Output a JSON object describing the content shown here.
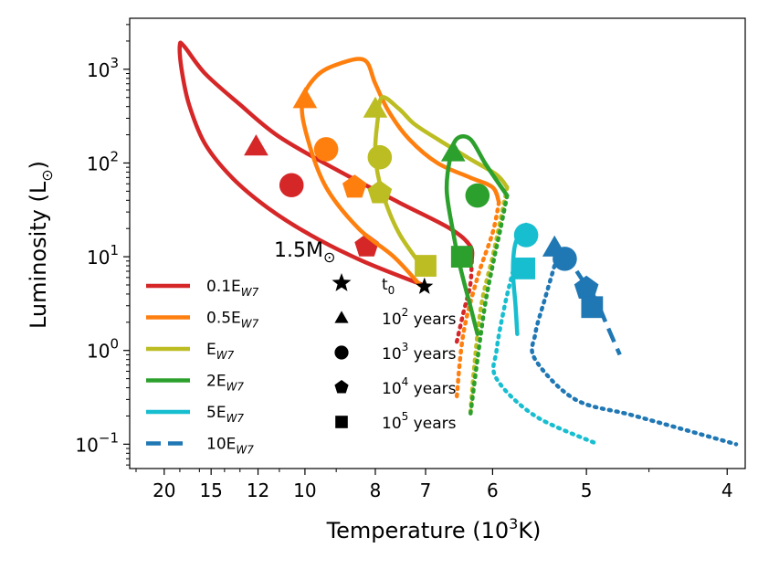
{
  "chart_data": {
    "type": "line",
    "title": "",
    "xlabel": {
      "text": "Temperature (10",
      "sup": "3",
      "tail": "K)"
    },
    "ylabel": {
      "text": "Luminosity (L",
      "sub": "⊙",
      "tail": ")"
    },
    "x_scale": "reciprocal",
    "x_unit": "10^3 K",
    "x_reversed": true,
    "xlim": [
      26.5,
      3.9
    ],
    "y_scale": "log",
    "ylim": [
      0.055,
      3500
    ],
    "grid": false,
    "x_ticks": [
      {
        "value": 20,
        "label": "20"
      },
      {
        "value": 15,
        "label": "15"
      },
      {
        "value": 12,
        "label": "12"
      },
      {
        "value": 10,
        "label": "10"
      },
      {
        "value": 8,
        "label": "8"
      },
      {
        "value": 7,
        "label": "7"
      },
      {
        "value": 6,
        "label": "6"
      },
      {
        "value": 5,
        "label": "5"
      },
      {
        "value": 4,
        "label": "4"
      }
    ],
    "y_ticks": [
      {
        "value": 0.1,
        "base": "10",
        "exp": "−1"
      },
      {
        "value": 1,
        "base": "10",
        "exp": "0"
      },
      {
        "value": 10,
        "base": "10",
        "exp": "1"
      },
      {
        "value": 100,
        "base": "10",
        "exp": "2"
      },
      {
        "value": 1000,
        "base": "10",
        "exp": "3"
      }
    ],
    "mass_label": {
      "text": "1.5M",
      "sub": "⊙"
    },
    "legend_position": "lower-left",
    "series": [
      {
        "name": "0.1E",
        "name_sub": "W7",
        "color": "#d62728",
        "dash": "solid",
        "solid": [
          [
            7.05,
            5.0
          ],
          [
            8.3,
            9.0
          ],
          [
            9.8,
            17
          ],
          [
            11.5,
            33
          ],
          [
            13.5,
            70
          ],
          [
            15.5,
            160
          ],
          [
            17.0,
            420
          ],
          [
            17.8,
            1000
          ],
          [
            18.0,
            1800
          ],
          [
            17.5,
            1750
          ],
          [
            15.5,
            900
          ],
          [
            13.0,
            420
          ],
          [
            11.0,
            190
          ],
          [
            9.0,
            85
          ],
          [
            7.5,
            38
          ],
          [
            6.6,
            20
          ],
          [
            6.3,
            13
          ],
          [
            6.28,
            9
          ]
        ],
        "dotted": [
          [
            6.28,
            9
          ],
          [
            6.3,
            5.0
          ],
          [
            6.4,
            2.5
          ],
          [
            6.5,
            1.2
          ]
        ],
        "markers": {
          "100": [
            12.1,
            150
          ],
          "1000": [
            10.5,
            58
          ],
          "10000": [
            8.2,
            13
          ]
        }
      },
      {
        "name": "0.5E",
        "name_sub": "W7",
        "color": "#ff7f0e",
        "dash": "solid",
        "solid": [
          [
            7.1,
            5.0
          ],
          [
            7.6,
            10
          ],
          [
            8.4,
            20
          ],
          [
            9.3,
            55
          ],
          [
            9.9,
            180
          ],
          [
            10.1,
            450
          ],
          [
            9.6,
            850
          ],
          [
            8.9,
            1150
          ],
          [
            8.25,
            1250
          ],
          [
            8.0,
            700
          ],
          [
            7.7,
            350
          ],
          [
            7.3,
            180
          ],
          [
            6.8,
            100
          ],
          [
            6.3,
            70
          ],
          [
            6.0,
            55
          ],
          [
            5.92,
            38
          ]
        ],
        "dotted": [
          [
            5.92,
            38
          ],
          [
            6.0,
            18
          ],
          [
            6.2,
            6
          ],
          [
            6.4,
            1.5
          ],
          [
            6.5,
            0.3
          ]
        ],
        "markers": {
          "100": [
            10.0,
            480
          ],
          "1000": [
            9.3,
            140
          ],
          "10000": [
            8.5,
            55
          ]
        }
      },
      {
        "name": "E",
        "name_sub": "W7",
        "color": "#bcbd22",
        "dash": "solid",
        "solid": [
          [
            7.0,
            7.0
          ],
          [
            7.5,
            18
          ],
          [
            7.85,
            50
          ],
          [
            8.0,
            120
          ],
          [
            7.95,
            280
          ],
          [
            7.85,
            500
          ],
          [
            7.5,
            380
          ],
          [
            7.2,
            260
          ],
          [
            6.8,
            180
          ],
          [
            6.3,
            110
          ],
          [
            5.95,
            75
          ],
          [
            5.82,
            55
          ]
        ],
        "dotted": [
          [
            5.82,
            55
          ],
          [
            5.9,
            25
          ],
          [
            6.0,
            10
          ],
          [
            6.15,
            3
          ],
          [
            6.25,
            0.6
          ],
          [
            6.3,
            0.2
          ]
        ],
        "markers": {
          "100": [
            8.0,
            380
          ],
          "1000": [
            7.9,
            115
          ],
          "10000": [
            7.9,
            48
          ],
          "100000": [
            7.0,
            8.0
          ]
        }
      },
      {
        "name": "2E",
        "name_sub": "W7",
        "color": "#2ca02c",
        "dash": "solid",
        "solid": [
          [
            6.2,
            1.5
          ],
          [
            6.3,
            3
          ],
          [
            6.45,
            8
          ],
          [
            6.55,
            18
          ],
          [
            6.65,
            50
          ],
          [
            6.6,
            110
          ],
          [
            6.5,
            180
          ],
          [
            6.3,
            180
          ],
          [
            6.1,
            100
          ],
          [
            5.92,
            60
          ],
          [
            5.82,
            45
          ]
        ],
        "dotted": [
          [
            5.82,
            45
          ],
          [
            5.9,
            20
          ],
          [
            6.0,
            8
          ],
          [
            6.1,
            3
          ],
          [
            6.2,
            0.8
          ],
          [
            6.3,
            0.2
          ]
        ],
        "markers": {
          "100": [
            6.55,
            130
          ],
          "1000": [
            6.2,
            45
          ],
          "100000": [
            6.42,
            10
          ]
        }
      },
      {
        "name": "5E",
        "name_sub": "W7",
        "color": "#17becf",
        "dash": "solid",
        "solid": [
          [
            5.7,
            1.5
          ],
          [
            5.72,
            3
          ],
          [
            5.75,
            7
          ],
          [
            5.72,
            14
          ],
          [
            5.6,
            22
          ]
        ],
        "dotted": [
          [
            5.75,
            7
          ],
          [
            5.85,
            3
          ],
          [
            5.95,
            1
          ],
          [
            5.95,
            0.5
          ],
          [
            5.5,
            0.2
          ],
          [
            4.9,
            0.1
          ]
        ],
        "markers": {
          "1000": [
            5.6,
            17
          ],
          "100000": [
            5.62,
            7.5
          ]
        }
      },
      {
        "name": "10E",
        "name_sub": "W7",
        "color": "#1f77b4",
        "dash": "dashed",
        "solid": [
          [
            5.2,
            11
          ],
          [
            5.05,
            6
          ],
          [
            4.92,
            3.5
          ],
          [
            4.82,
            1.8
          ],
          [
            4.72,
            0.9
          ]
        ],
        "dotted": [
          [
            5.3,
            8
          ],
          [
            5.4,
            3.5
          ],
          [
            5.5,
            1.5
          ],
          [
            5.5,
            0.8
          ],
          [
            5.1,
            0.3
          ],
          [
            4.6,
            0.2
          ],
          [
            3.95,
            0.1
          ]
        ],
        "markers": {
          "100": [
            5.3,
            12.5
          ],
          "1000": [
            5.2,
            9.5
          ],
          "10000": [
            5.0,
            4.6
          ],
          "100000": [
            4.95,
            2.9
          ]
        }
      }
    ],
    "start_point": [
      7.02,
      4.8
    ],
    "marker_legend": [
      {
        "symbol": "star",
        "label": "t",
        "sub": "0",
        "sup": "",
        "tail": ""
      },
      {
        "symbol": "triangle",
        "label": "10",
        "sup": "2",
        "sub": "",
        "tail": " years"
      },
      {
        "symbol": "circle",
        "label": "10",
        "sup": "3",
        "sub": "",
        "tail": " years"
      },
      {
        "symbol": "pentagon",
        "label": "10",
        "sup": "4",
        "sub": "",
        "tail": " years"
      },
      {
        "symbol": "square",
        "label": "10",
        "sup": "5",
        "sub": "",
        "tail": " years"
      }
    ]
  }
}
